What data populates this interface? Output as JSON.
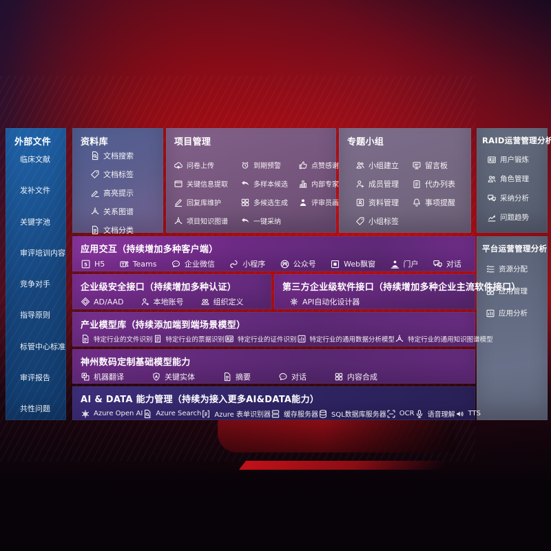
{
  "theme": {
    "sidebar_top": "#2064ab",
    "sidebar_bottom": "#113a6a",
    "ziliao_top": "#4e5d90",
    "ziliao_bottom": "#746292",
    "project_top": "#83618a",
    "project_bottom": "#6b4d72",
    "groups_top": "#7d6e8c",
    "groups_bottom": "#6e6279",
    "raid_top": "#636b7e",
    "raid_bottom": "#565d6e",
    "purple_bright": "#8a35a0",
    "purple_deep": "#5f2a78",
    "indigo_top": "#3e2f7c",
    "indigo_bottom": "#2a2158",
    "background_red": "#b40f14"
  },
  "sidebar": {
    "title": "外部文件",
    "items": [
      {
        "label": "临床文献"
      },
      {
        "label": "发补文件"
      },
      {
        "label": "关键字池"
      },
      {
        "label": "审评培训内容"
      },
      {
        "label": "竞争对手"
      },
      {
        "label": "指导原则"
      },
      {
        "label": "标管中心标准"
      },
      {
        "label": "审评报告"
      },
      {
        "label": "共性问题"
      }
    ]
  },
  "panels": {
    "ziliao": {
      "title": "资料库",
      "items": [
        {
          "icon": "doc-search",
          "label": "文档搜索"
        },
        {
          "icon": "tag",
          "label": "文档标签"
        },
        {
          "icon": "highlight-pencil",
          "label": "高亮提示"
        },
        {
          "icon": "relation-graph",
          "label": "关系图谱"
        },
        {
          "icon": "doc-category",
          "label": "文档分类"
        }
      ]
    },
    "project": {
      "title": "项目管理",
      "items": [
        {
          "icon": "cloud-upload",
          "label": "问卷上传"
        },
        {
          "icon": "alarm-clock",
          "label": "到期预警"
        },
        {
          "icon": "thumbs-up",
          "label": "点赞感谢"
        },
        {
          "icon": "browser-window",
          "label": "关键信息提取"
        },
        {
          "icon": "reply-arrow",
          "label": "多样本候选"
        },
        {
          "icon": "ranking-chart",
          "label": "内部专家排名"
        },
        {
          "icon": "pencil",
          "label": "回复库维护"
        },
        {
          "icon": "grid",
          "label": "多候选生成"
        },
        {
          "icon": "person",
          "label": "评审员画像"
        },
        {
          "icon": "knowledge-graph",
          "label": "项目知识图谱"
        },
        {
          "icon": "adopt-arrow",
          "label": "一键采纳"
        }
      ]
    },
    "groups": {
      "title": "专题小组",
      "items": [
        {
          "icon": "people",
          "label": "小组建立"
        },
        {
          "icon": "message-board",
          "label": "留言板"
        },
        {
          "icon": "member-add",
          "label": "成员管理"
        },
        {
          "icon": "clipboard",
          "label": "代办列表"
        },
        {
          "icon": "photo-album",
          "label": "资料管理"
        },
        {
          "icon": "bell",
          "label": "事项提醒"
        },
        {
          "icon": "tag",
          "label": "小组标签"
        }
      ]
    },
    "raid": {
      "title": "RAID运营管理分析",
      "items": [
        {
          "icon": "id-card",
          "label": "用户锻炼"
        },
        {
          "icon": "people",
          "label": "角色管理"
        },
        {
          "icon": "qa-chat",
          "label": "采纳分析"
        },
        {
          "icon": "trend-chart",
          "label": "问题趋势"
        }
      ]
    },
    "platform": {
      "title": "平台运营管理分析",
      "items": [
        {
          "icon": "task-list",
          "label": "资源分配"
        },
        {
          "icon": "app-grid",
          "label": "应用管理"
        },
        {
          "icon": "chart-board",
          "label": "应用分析"
        }
      ]
    },
    "interaction": {
      "title": "应用交互（持续增加多种客户端）",
      "items": [
        {
          "icon": "html5",
          "label": "H5"
        },
        {
          "icon": "teams",
          "label": "Teams"
        },
        {
          "icon": "wechat-work",
          "label": "企业微信"
        },
        {
          "icon": "mini-program",
          "label": "小程序"
        },
        {
          "icon": "official-account",
          "label": "公众号"
        },
        {
          "icon": "web-window",
          "label": "Web飘窗"
        },
        {
          "icon": "portal",
          "label": "门户"
        },
        {
          "icon": "dialog",
          "label": "对话"
        }
      ]
    },
    "security": {
      "title": "企业级安全接口（持续增加多种认证）",
      "items": [
        {
          "icon": "ad-diamond",
          "label": "AD/AAD"
        },
        {
          "icon": "local-account",
          "label": "本地账号"
        },
        {
          "icon": "org-group",
          "label": "组织定义"
        }
      ]
    },
    "thirdparty": {
      "title": "第三方企业级软件接口（持续增加多种企业主流软件接口）",
      "items": [
        {
          "icon": "api-gear",
          "label": "API自动化设计器"
        }
      ]
    },
    "industry": {
      "title": "产业模型库（持续添加端到端场景模型）",
      "items": [
        {
          "icon": "doc-lines",
          "label": "特定行业的文件识别"
        },
        {
          "icon": "receipt",
          "label": "特定行业的票据识别"
        },
        {
          "icon": "id-badge",
          "label": "特定行业的证件识别"
        },
        {
          "icon": "chart-board",
          "label": "特定行业的通用数据分析模型"
        },
        {
          "icon": "knowledge-graph",
          "label": "特定行业的通用知识图谱模型"
        }
      ]
    },
    "basemodel": {
      "title": "神州数码定制基础模型能力",
      "items": [
        {
          "icon": "translate",
          "label": "机器翻译"
        },
        {
          "icon": "entity-shield",
          "label": "关键实体"
        },
        {
          "icon": "summary-doc",
          "label": "摘要"
        },
        {
          "icon": "chat-bubble",
          "label": "对话"
        },
        {
          "icon": "compose-grid",
          "label": "内容合成"
        }
      ]
    },
    "aidata": {
      "title": "AI & DATA 能力管理（持续为接入更多AI&DATA能力）",
      "items": [
        {
          "icon": "openai",
          "label": "Azure Open AI"
        },
        {
          "icon": "azure-search",
          "label": "Azure Search"
        },
        {
          "icon": "form-recognizer",
          "label": "Azure 表单识别器"
        },
        {
          "icon": "cache-server",
          "label": "缓存服务器"
        },
        {
          "icon": "sql-database",
          "label": "SQL数据库服务器"
        },
        {
          "icon": "ocr-frame",
          "label": "OCR"
        },
        {
          "icon": "speech-mic",
          "label": "语音理解"
        },
        {
          "icon": "tts-speaker",
          "label": "TTS"
        }
      ]
    }
  }
}
